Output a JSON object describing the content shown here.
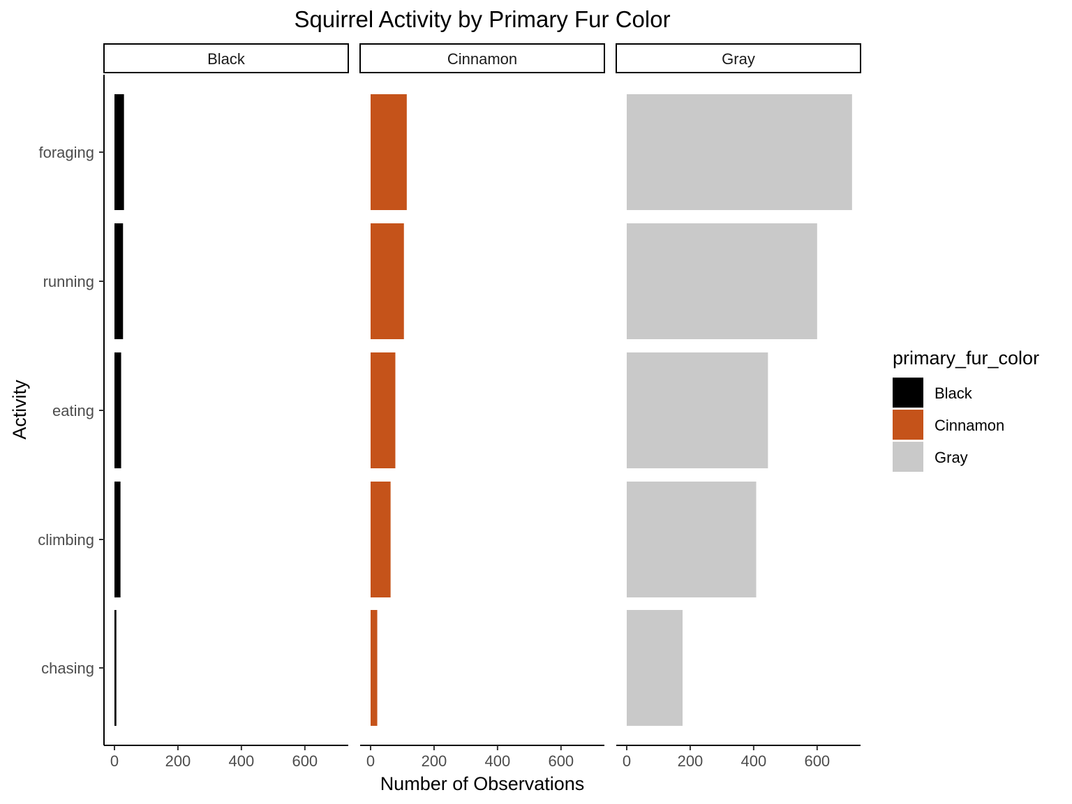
{
  "chart_data": {
    "type": "bar",
    "orientation": "horizontal",
    "facet_type": "facet_wrap",
    "title": "Squirrel Activity by Primary Fur Color",
    "xlabel": "Number of Observations",
    "ylabel": "Activity",
    "categories": [
      "foraging",
      "running",
      "eating",
      "climbing",
      "chasing"
    ],
    "xlim": [
      0,
      735
    ],
    "xticks": [
      0,
      200,
      400,
      600
    ],
    "grid": false,
    "legend": {
      "title": "primary_fur_color",
      "position": "right",
      "entries": [
        "Black",
        "Cinnamon",
        "Gray"
      ]
    },
    "facets": [
      {
        "name": "Black",
        "color": "#000000",
        "values": [
          30,
          27,
          21,
          19,
          6
        ]
      },
      {
        "name": "Cinnamon",
        "color": "#C5531A",
        "values": [
          114,
          105,
          78,
          63,
          21
        ]
      },
      {
        "name": "Gray",
        "color": "#C9C9C9",
        "values": [
          710,
          600,
          445,
          408,
          176
        ]
      }
    ]
  }
}
